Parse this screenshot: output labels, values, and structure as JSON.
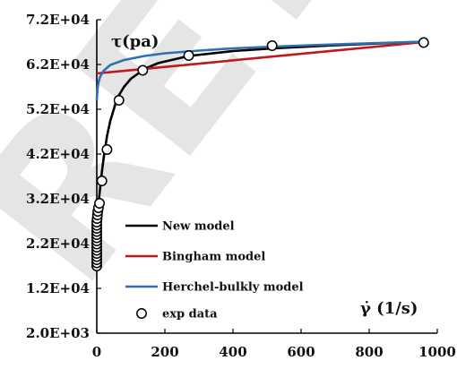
{
  "watermark": "RETRACTED",
  "chart_data": {
    "type": "line",
    "title": "",
    "ylabel": "τ(pa)",
    "xlabel": "γ̇ (1/s)",
    "xlim": [
      0,
      1000
    ],
    "ylim": [
      2000,
      72000
    ],
    "x_ticks": [
      "0",
      "200",
      "400",
      "600",
      "800",
      "1000"
    ],
    "y_ticks": [
      "2.0E+03",
      "1.2E+04",
      "2.2E+04",
      "3.2E+04",
      "4.2E+04",
      "5.2E+04",
      "6.2E+04",
      "7.2E+04"
    ],
    "y_tick_values": [
      2000,
      12000,
      22000,
      32000,
      42000,
      52000,
      62000,
      72000
    ],
    "x_tick_values": [
      0,
      200,
      400,
      600,
      800,
      1000
    ],
    "grid": false,
    "legend_position": "bottom-left",
    "series": [
      {
        "name": "New model",
        "style": "line",
        "color": "#000000",
        "x": [
          0,
          1,
          2,
          4,
          6,
          8,
          10,
          15,
          20,
          30,
          40,
          60,
          80,
          100,
          140,
          180,
          270,
          400,
          520,
          700,
          960
        ],
        "y": [
          16500,
          22000,
          26500,
          29500,
          31500,
          33000,
          34500,
          38000,
          41000,
          46000,
          49500,
          54500,
          57000,
          58800,
          61000,
          62300,
          63900,
          65000,
          65600,
          66300,
          67100
        ]
      },
      {
        "name": "Bingham model",
        "style": "line",
        "color": "#c0181f",
        "x": [
          0,
          960
        ],
        "y": [
          60000,
          67000
        ]
      },
      {
        "name": "Herchel-bulkly model",
        "style": "line",
        "color": "#2f6fb5",
        "x": [
          0,
          2,
          5,
          10,
          20,
          40,
          80,
          140,
          200,
          300,
          400,
          520,
          700,
          960
        ],
        "y": [
          54000,
          56500,
          58000,
          59300,
          60600,
          61900,
          63000,
          63900,
          64500,
          65100,
          65600,
          66000,
          66500,
          67100
        ]
      },
      {
        "name": "exp data",
        "style": "markers",
        "color": "#000000",
        "x": [
          0,
          0,
          0,
          0,
          0,
          0,
          0,
          0,
          0,
          0,
          0,
          0,
          0,
          0,
          0,
          1,
          2,
          3,
          5,
          8,
          15,
          30,
          65,
          135,
          270,
          515,
          960
        ],
        "y": [
          17000,
          17700,
          18400,
          19100,
          19800,
          20500,
          21200,
          21900,
          22600,
          23300,
          24000,
          24700,
          25400,
          26100,
          26800,
          27600,
          28400,
          29200,
          30000,
          31000,
          36000,
          43000,
          54000,
          60700,
          64000,
          66200,
          66900
        ]
      }
    ]
  }
}
